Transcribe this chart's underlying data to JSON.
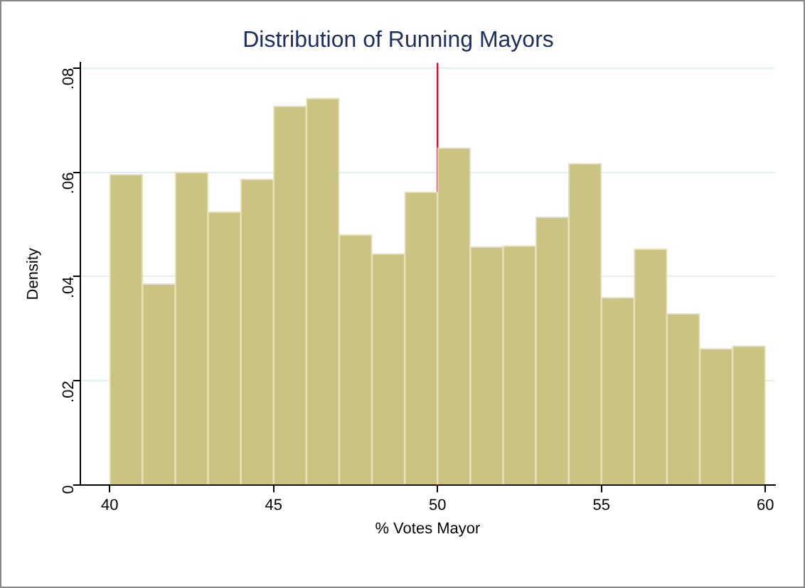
{
  "chart_data": {
    "type": "histogram",
    "title": "Distribution of Running Mayors",
    "xlabel": "% Votes Mayor",
    "ylabel": "Density",
    "bins": [
      40,
      41,
      42,
      43,
      44,
      45,
      46,
      47,
      48,
      49,
      50,
      51,
      52,
      53,
      54,
      55,
      56,
      57,
      58,
      59,
      60
    ],
    "values": [
      0.0596,
      0.0386,
      0.06,
      0.0524,
      0.0587,
      0.0727,
      0.0742,
      0.048,
      0.0444,
      0.0562,
      0.0647,
      0.0457,
      0.0459,
      0.0514,
      0.0617,
      0.036,
      0.0453,
      0.0329,
      0.0262,
      0.0267
    ],
    "color": "#cbc382",
    "xlim": [
      39.1,
      60.3
    ],
    "xticks": [
      40,
      45,
      50,
      55,
      60
    ],
    "ylim": [
      0,
      0.081
    ],
    "yticks": [
      0,
      {
        "value": 0.02,
        "label": ".02"
      },
      {
        "value": 0.04,
        "label": ".04"
      },
      {
        "value": 0.06,
        "label": ".06"
      },
      {
        "value": 0.08,
        "label": ".08"
      }
    ],
    "ref_lines": [
      {
        "axis": "x",
        "value": 50,
        "color": "#c8102e"
      }
    ],
    "grid": "y"
  }
}
